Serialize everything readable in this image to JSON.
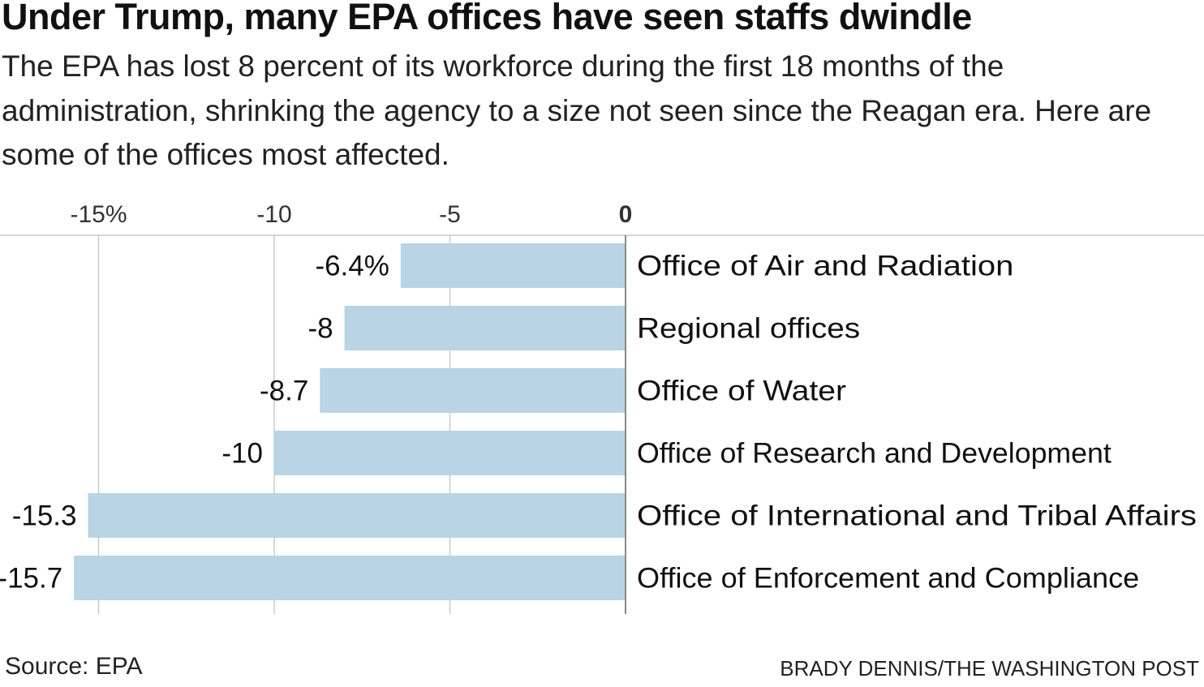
{
  "headline": "Under Trump, many EPA offices have seen staffs dwindle",
  "dek": "The EPA has lost 8 percent of its workforce during the first 18 months of the administration, shrinking the agency to a size not seen since the Reagan era. Here are some of the offices most affected.",
  "source": "Source: EPA",
  "credit": "BRADY DENNIS/THE WASHINGTON POST",
  "chart_data": {
    "type": "bar",
    "orientation": "horizontal",
    "title": "",
    "xlabel": "",
    "ylabel": "",
    "xlim": [
      -16,
      0
    ],
    "ticks": [
      {
        "value": -15,
        "label": "-15%"
      },
      {
        "value": -10,
        "label": "-10"
      },
      {
        "value": -5,
        "label": "-5"
      },
      {
        "value": 0,
        "label": "0"
      }
    ],
    "categories": [
      "Office of Air and Radiation",
      "Regional offices",
      "Office of Water",
      "Office of Research and Development",
      "Office of International and Tribal Affairs",
      "Office of Enforcement and Compliance"
    ],
    "values": [
      -6.4,
      -8,
      -8.7,
      -10,
      -15.3,
      -15.7
    ],
    "value_labels": [
      "-6.4%",
      "-8",
      "-8.7",
      "-10",
      "-15.3",
      "-15.7"
    ],
    "grid": true,
    "legend": "none",
    "colors": {
      "bar": "#b8d4e5",
      "grid": "#c8c8c8",
      "zero_line": "#888888",
      "text": "#111111"
    }
  }
}
